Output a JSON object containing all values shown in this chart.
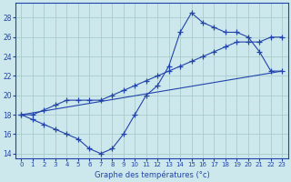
{
  "title": "Graphe des températures (°c)",
  "bg_color": "#cce8ec",
  "grid_color": "#aacccc",
  "line_color": "#2244aa",
  "xlim": [
    -0.5,
    23.5
  ],
  "ylim": [
    13.5,
    29.5
  ],
  "xticks": [
    0,
    1,
    2,
    3,
    4,
    5,
    6,
    7,
    8,
    9,
    10,
    11,
    12,
    13,
    14,
    15,
    16,
    17,
    18,
    19,
    20,
    21,
    22,
    23
  ],
  "yticks": [
    14,
    16,
    18,
    20,
    22,
    24,
    26,
    28
  ],
  "series1_x": [
    0,
    1,
    2,
    3,
    4,
    5,
    6,
    7,
    8,
    9,
    10,
    11,
    12,
    13,
    14,
    15,
    16,
    17,
    18,
    19,
    20,
    21,
    22,
    23
  ],
  "series1_y": [
    18,
    17.5,
    17,
    16.5,
    16,
    15.5,
    14.5,
    14.0,
    14.5,
    16,
    18,
    20,
    21,
    23,
    26.5,
    28.5,
    27.5,
    27.0,
    26.5,
    26.5,
    26.0,
    24.5,
    22.5,
    22.5
  ],
  "series2_x": [
    0,
    1,
    2,
    3,
    4,
    5,
    6,
    7,
    8,
    9,
    10,
    11,
    12,
    13,
    14,
    15,
    16,
    17,
    18,
    19,
    20,
    21,
    22,
    23
  ],
  "series2_y": [
    18,
    18,
    18.5,
    19.0,
    19.5,
    19.5,
    19.5,
    19.5,
    20.0,
    20.5,
    21.0,
    21.5,
    22.0,
    22.5,
    23.0,
    23.5,
    24.0,
    24.5,
    25.0,
    25.5,
    25.5,
    25.5,
    26.0,
    26.0
  ],
  "series3_x": [
    0,
    23
  ],
  "series3_y": [
    18.0,
    22.5
  ]
}
